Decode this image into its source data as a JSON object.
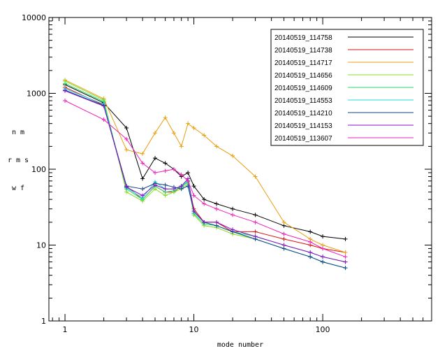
{
  "chart_data": {
    "type": "line",
    "title": "",
    "xlabel": "mode number",
    "ylabel_lines": [
      "n m",
      "r m s",
      "w f"
    ],
    "x_scale": "log",
    "y_scale": "log",
    "xlim": [
      0.75,
      700
    ],
    "ylim": [
      1,
      10000
    ],
    "x_ticks": [
      {
        "value": 1,
        "label": "1"
      },
      {
        "value": 10,
        "label": "10"
      },
      {
        "value": 100,
        "label": "100"
      }
    ],
    "y_ticks": [
      {
        "value": 1,
        "label": "1"
      },
      {
        "value": 10,
        "label": "10"
      },
      {
        "value": 100,
        "label": "100"
      },
      {
        "value": 1000,
        "label": "1000"
      },
      {
        "value": 10000,
        "label": "10000"
      }
    ],
    "grid": false,
    "legend_position": "top-right",
    "marker": "+",
    "series": [
      {
        "name": "20140519_114758",
        "color": "#000000",
        "x": [
          1,
          2,
          3,
          4,
          5,
          6,
          7,
          8,
          9,
          10,
          12,
          15,
          20,
          30,
          50,
          80,
          100,
          150
        ],
        "values": [
          1300,
          750,
          350,
          75,
          140,
          120,
          100,
          80,
          90,
          60,
          40,
          35,
          30,
          25,
          18,
          15,
          13,
          12
        ]
      },
      {
        "name": "20140519_114738",
        "color": "#dd1111",
        "x": [
          1,
          2,
          3,
          4,
          5,
          6,
          7,
          8,
          9,
          10,
          12,
          15,
          20,
          30,
          50,
          80,
          100,
          150
        ],
        "values": [
          1200,
          700,
          60,
          40,
          60,
          50,
          50,
          60,
          70,
          30,
          20,
          20,
          15,
          15,
          12,
          10,
          9,
          8
        ]
      },
      {
        "name": "20140519_114717",
        "color": "#e8a010",
        "x": [
          1,
          2,
          3,
          4,
          5,
          6,
          7,
          8,
          9,
          10,
          12,
          15,
          20,
          30,
          50,
          80,
          100,
          150
        ],
        "values": [
          1500,
          850,
          180,
          160,
          300,
          480,
          300,
          200,
          400,
          350,
          280,
          200,
          150,
          80,
          20,
          12,
          10,
          8
        ]
      },
      {
        "name": "20140519_114656",
        "color": "#88dd22",
        "x": [
          1,
          2,
          3,
          4,
          5,
          6,
          7,
          8,
          9,
          10,
          12,
          15,
          20,
          30,
          50,
          80,
          100,
          150
        ],
        "values": [
          1450,
          820,
          50,
          38,
          55,
          45,
          50,
          55,
          65,
          25,
          18,
          17,
          14,
          12,
          9,
          7,
          6,
          5
        ]
      },
      {
        "name": "20140519_114609",
        "color": "#22dd66",
        "x": [
          1,
          2,
          3,
          4,
          5,
          6,
          7,
          8,
          9,
          10,
          12,
          15,
          20,
          30,
          50,
          80,
          100,
          150
        ],
        "values": [
          1350,
          780,
          55,
          40,
          60,
          50,
          52,
          58,
          68,
          26,
          19,
          18,
          15,
          13,
          10,
          8,
          7,
          6
        ]
      },
      {
        "name": "20140519_114553",
        "color": "#22dddd",
        "x": [
          1,
          2,
          3,
          4,
          5,
          6,
          7,
          8,
          9,
          10,
          12,
          15,
          20,
          30,
          50,
          80,
          100,
          150
        ],
        "values": [
          1150,
          720,
          57,
          42,
          68,
          55,
          55,
          60,
          70,
          27,
          20,
          18,
          15,
          12,
          9,
          7,
          6,
          5
        ]
      },
      {
        "name": "20140519_114210",
        "color": "#114488",
        "x": [
          1,
          2,
          3,
          4,
          5,
          6,
          7,
          8,
          9,
          10,
          12,
          15,
          20,
          30,
          50,
          80,
          100,
          150
        ],
        "values": [
          1100,
          690,
          60,
          55,
          65,
          62,
          58,
          55,
          60,
          28,
          20,
          18,
          15,
          12,
          9,
          7,
          6,
          5
        ]
      },
      {
        "name": "20140519_114153",
        "color": "#8811cc",
        "x": [
          1,
          2,
          3,
          4,
          5,
          6,
          7,
          8,
          9,
          10,
          12,
          15,
          20,
          30,
          50,
          80,
          100,
          150
        ],
        "values": [
          1080,
          680,
          58,
          45,
          62,
          55,
          55,
          60,
          75,
          28,
          20,
          20,
          16,
          13,
          10,
          8,
          7,
          6
        ]
      },
      {
        "name": "20140519_113607",
        "color": "#ee22bb",
        "x": [
          1,
          2,
          3,
          4,
          5,
          6,
          7,
          8,
          9,
          10,
          12,
          15,
          20,
          30,
          50,
          80,
          100,
          150
        ],
        "values": [
          800,
          450,
          250,
          120,
          90,
          95,
          100,
          85,
          70,
          45,
          35,
          30,
          25,
          20,
          14,
          11,
          9,
          7
        ]
      }
    ]
  }
}
